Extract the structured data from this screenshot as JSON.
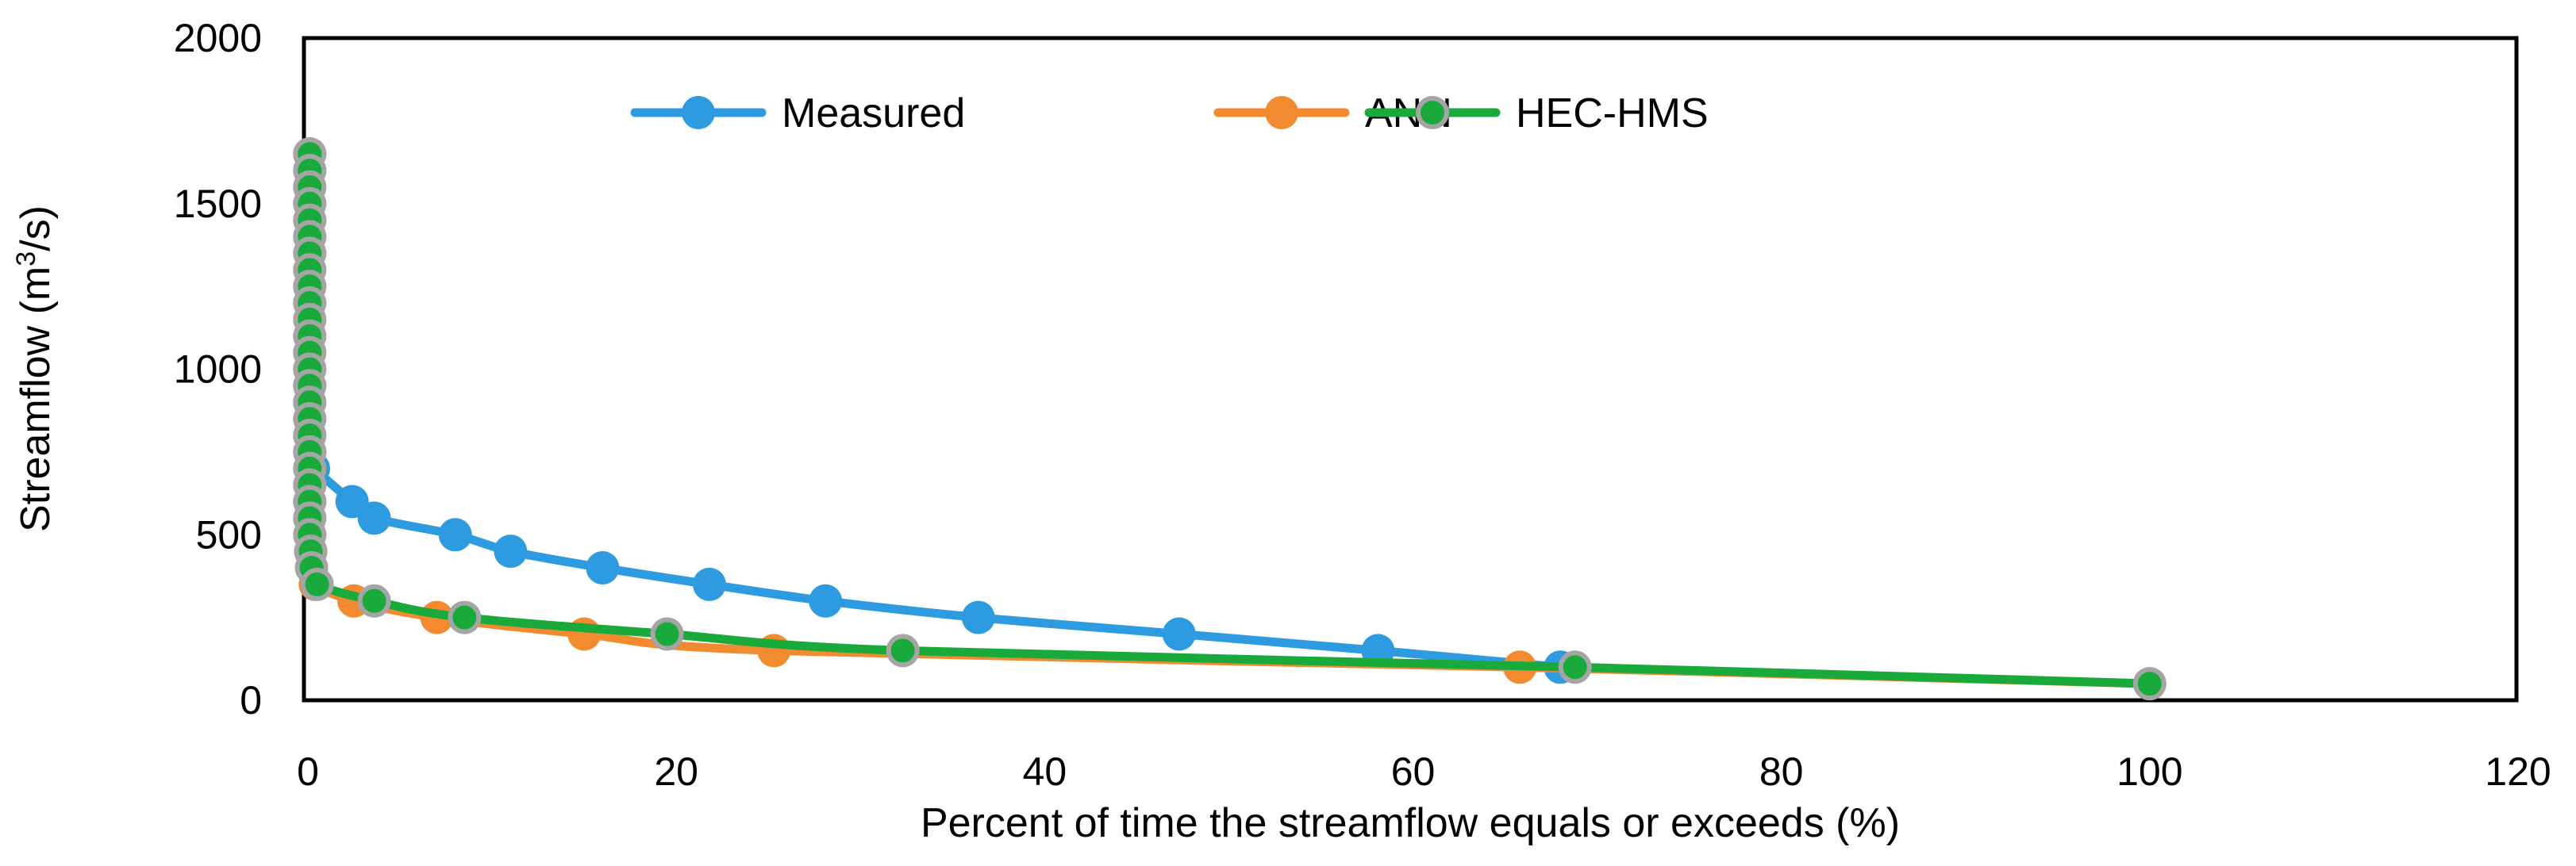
{
  "chart_data": {
    "type": "line",
    "title": "",
    "xlabel": "Percent of time the streamflow equals or exceeds (%)",
    "ylabel": {
      "prefix": "Streamflow (m",
      "superscript": "3",
      "suffix": "/s)"
    },
    "xlim": [
      0,
      120
    ],
    "ylim": [
      0,
      2000
    ],
    "xticks": [
      "0",
      "20",
      "40",
      "60",
      "80",
      "100",
      "120"
    ],
    "yticks": [
      "0",
      "500",
      "1000",
      "1500",
      "2000"
    ],
    "grid": false,
    "legend_position": "top",
    "series": [
      {
        "name": "Measured",
        "color": "#2e9be0",
        "marker": "circle",
        "points": [
          [
            0.3,
            700
          ],
          [
            2.4,
            600
          ],
          [
            3.6,
            550
          ],
          [
            8.0,
            500
          ],
          [
            11.0,
            450
          ],
          [
            16.0,
            400
          ],
          [
            21.8,
            350
          ],
          [
            28.1,
            300
          ],
          [
            36.4,
            250
          ],
          [
            47.3,
            200
          ],
          [
            58.1,
            150
          ],
          [
            68.0,
            100
          ]
        ]
      },
      {
        "name": "ANN",
        "color": "#f28a30",
        "marker": "circle",
        "points": [
          [
            0.1,
            1650
          ],
          [
            0.1,
            1600
          ],
          [
            0.1,
            1550
          ],
          [
            0.1,
            1500
          ],
          [
            0.1,
            1450
          ],
          [
            0.1,
            1400
          ],
          [
            0.1,
            1350
          ],
          [
            0.1,
            1300
          ],
          [
            0.1,
            1250
          ],
          [
            0.1,
            1200
          ],
          [
            0.1,
            1150
          ],
          [
            0.1,
            1100
          ],
          [
            0.1,
            1050
          ],
          [
            0.1,
            1000
          ],
          [
            0.1,
            950
          ],
          [
            0.1,
            900
          ],
          [
            0.1,
            850
          ],
          [
            0.1,
            800
          ],
          [
            0.1,
            750
          ],
          [
            0.1,
            700
          ],
          [
            0.1,
            650
          ],
          [
            0.1,
            600
          ],
          [
            0.1,
            550
          ],
          [
            0.1,
            500
          ],
          [
            0.15,
            450
          ],
          [
            0.2,
            400
          ],
          [
            0.4,
            350
          ],
          [
            2.5,
            300
          ],
          [
            7.0,
            250
          ],
          [
            15.0,
            200
          ],
          [
            25.3,
            150
          ],
          [
            65.8,
            100
          ],
          [
            100,
            50
          ]
        ]
      },
      {
        "name": "HEC-HMS",
        "color": "#1aaa3c",
        "marker_edge": "#a5a5a5",
        "marker": "circle",
        "points": [
          [
            0.1,
            1650
          ],
          [
            0.1,
            1600
          ],
          [
            0.1,
            1550
          ],
          [
            0.1,
            1500
          ],
          [
            0.1,
            1450
          ],
          [
            0.1,
            1400
          ],
          [
            0.1,
            1350
          ],
          [
            0.1,
            1300
          ],
          [
            0.1,
            1250
          ],
          [
            0.1,
            1200
          ],
          [
            0.1,
            1150
          ],
          [
            0.1,
            1100
          ],
          [
            0.1,
            1050
          ],
          [
            0.1,
            1000
          ],
          [
            0.1,
            950
          ],
          [
            0.1,
            900
          ],
          [
            0.1,
            850
          ],
          [
            0.1,
            800
          ],
          [
            0.1,
            750
          ],
          [
            0.1,
            700
          ],
          [
            0.1,
            650
          ],
          [
            0.1,
            600
          ],
          [
            0.1,
            550
          ],
          [
            0.1,
            500
          ],
          [
            0.15,
            450
          ],
          [
            0.2,
            400
          ],
          [
            0.5,
            350
          ],
          [
            3.6,
            300
          ],
          [
            8.5,
            250
          ],
          [
            19.5,
            200
          ],
          [
            32.3,
            150
          ],
          [
            68.8,
            100
          ],
          [
            100,
            50
          ]
        ]
      }
    ]
  }
}
